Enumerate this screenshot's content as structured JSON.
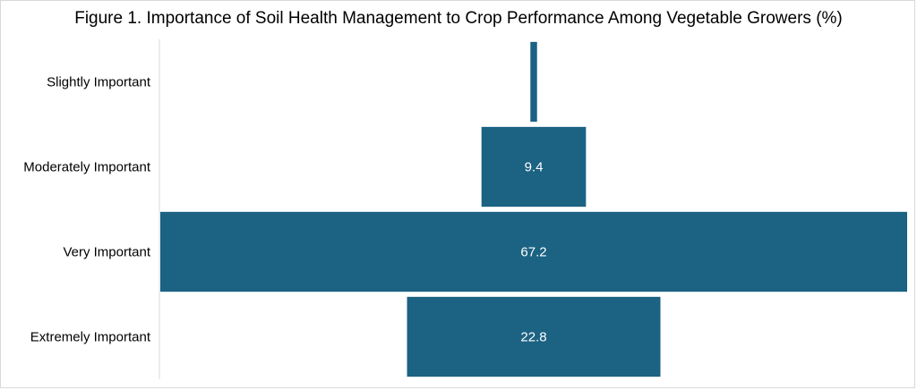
{
  "chart_data": {
    "type": "bar",
    "orientation": "horizontal-funnel",
    "title": "Figure 1. Importance of Soil Health Management to Crop Performance Among Vegetable Growers (%)",
    "categories": [
      "Slightly Important",
      "Moderately Important",
      "Very Important",
      "Extremely Important"
    ],
    "values": [
      0.6,
      9.4,
      67.2,
      22.8
    ],
    "data_labels": [
      "",
      "9.4",
      "67.2",
      "22.8"
    ],
    "bar_color": "#1b6283",
    "label_color": "#ffffff",
    "axis_color": "#d9d9d9",
    "xlim": [
      0,
      67.2
    ],
    "grid": false,
    "legend": "none"
  }
}
